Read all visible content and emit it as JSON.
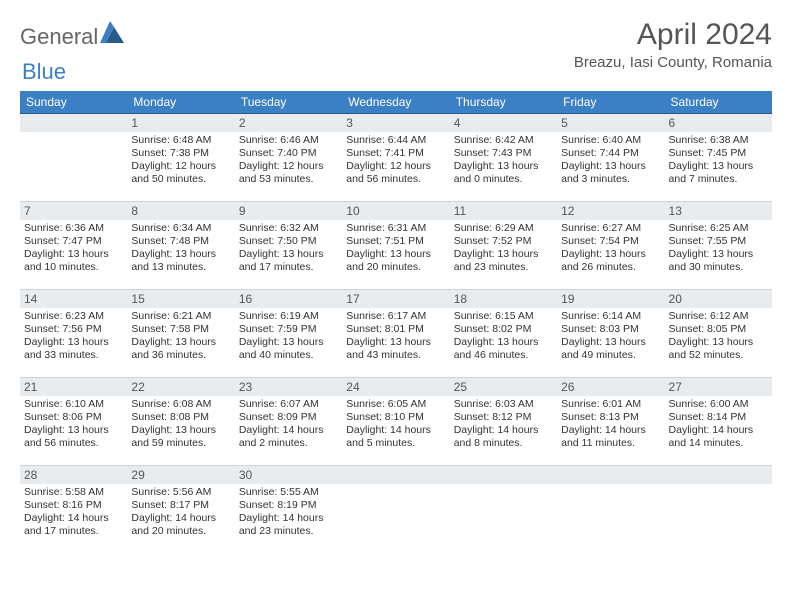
{
  "brand": {
    "general": "General",
    "blue": "Blue"
  },
  "title": "April 2024",
  "location": "Breazu, Iasi County, Romania",
  "weekday_headers": [
    "Sunday",
    "Monday",
    "Tuesday",
    "Wednesday",
    "Thursday",
    "Friday",
    "Saturday"
  ],
  "colors": {
    "header_bg": "#3b7fc4",
    "header_text": "#ffffff",
    "daynum_bg": "#e8ecef",
    "border": "#c8d4de",
    "body_text": "#333333",
    "title_text": "#555555",
    "logo_gray": "#666666",
    "logo_blue": "#3b7fc4",
    "page_bg": "#ffffff"
  },
  "typography": {
    "title_fontsize": 30,
    "location_fontsize": 15,
    "header_fontsize": 12,
    "daynum_fontsize": 12,
    "cell_fontsize": 10.5,
    "logo_fontsize": 22
  },
  "start_offset": 1,
  "days": [
    {
      "n": "1",
      "sunrise": "Sunrise: 6:48 AM",
      "sunset": "Sunset: 7:38 PM",
      "day1": "Daylight: 12 hours",
      "day2": "and 50 minutes."
    },
    {
      "n": "2",
      "sunrise": "Sunrise: 6:46 AM",
      "sunset": "Sunset: 7:40 PM",
      "day1": "Daylight: 12 hours",
      "day2": "and 53 minutes."
    },
    {
      "n": "3",
      "sunrise": "Sunrise: 6:44 AM",
      "sunset": "Sunset: 7:41 PM",
      "day1": "Daylight: 12 hours",
      "day2": "and 56 minutes."
    },
    {
      "n": "4",
      "sunrise": "Sunrise: 6:42 AM",
      "sunset": "Sunset: 7:43 PM",
      "day1": "Daylight: 13 hours",
      "day2": "and 0 minutes."
    },
    {
      "n": "5",
      "sunrise": "Sunrise: 6:40 AM",
      "sunset": "Sunset: 7:44 PM",
      "day1": "Daylight: 13 hours",
      "day2": "and 3 minutes."
    },
    {
      "n": "6",
      "sunrise": "Sunrise: 6:38 AM",
      "sunset": "Sunset: 7:45 PM",
      "day1": "Daylight: 13 hours",
      "day2": "and 7 minutes."
    },
    {
      "n": "7",
      "sunrise": "Sunrise: 6:36 AM",
      "sunset": "Sunset: 7:47 PM",
      "day1": "Daylight: 13 hours",
      "day2": "and 10 minutes."
    },
    {
      "n": "8",
      "sunrise": "Sunrise: 6:34 AM",
      "sunset": "Sunset: 7:48 PM",
      "day1": "Daylight: 13 hours",
      "day2": "and 13 minutes."
    },
    {
      "n": "9",
      "sunrise": "Sunrise: 6:32 AM",
      "sunset": "Sunset: 7:50 PM",
      "day1": "Daylight: 13 hours",
      "day2": "and 17 minutes."
    },
    {
      "n": "10",
      "sunrise": "Sunrise: 6:31 AM",
      "sunset": "Sunset: 7:51 PM",
      "day1": "Daylight: 13 hours",
      "day2": "and 20 minutes."
    },
    {
      "n": "11",
      "sunrise": "Sunrise: 6:29 AM",
      "sunset": "Sunset: 7:52 PM",
      "day1": "Daylight: 13 hours",
      "day2": "and 23 minutes."
    },
    {
      "n": "12",
      "sunrise": "Sunrise: 6:27 AM",
      "sunset": "Sunset: 7:54 PM",
      "day1": "Daylight: 13 hours",
      "day2": "and 26 minutes."
    },
    {
      "n": "13",
      "sunrise": "Sunrise: 6:25 AM",
      "sunset": "Sunset: 7:55 PM",
      "day1": "Daylight: 13 hours",
      "day2": "and 30 minutes."
    },
    {
      "n": "14",
      "sunrise": "Sunrise: 6:23 AM",
      "sunset": "Sunset: 7:56 PM",
      "day1": "Daylight: 13 hours",
      "day2": "and 33 minutes."
    },
    {
      "n": "15",
      "sunrise": "Sunrise: 6:21 AM",
      "sunset": "Sunset: 7:58 PM",
      "day1": "Daylight: 13 hours",
      "day2": "and 36 minutes."
    },
    {
      "n": "16",
      "sunrise": "Sunrise: 6:19 AM",
      "sunset": "Sunset: 7:59 PM",
      "day1": "Daylight: 13 hours",
      "day2": "and 40 minutes."
    },
    {
      "n": "17",
      "sunrise": "Sunrise: 6:17 AM",
      "sunset": "Sunset: 8:01 PM",
      "day1": "Daylight: 13 hours",
      "day2": "and 43 minutes."
    },
    {
      "n": "18",
      "sunrise": "Sunrise: 6:15 AM",
      "sunset": "Sunset: 8:02 PM",
      "day1": "Daylight: 13 hours",
      "day2": "and 46 minutes."
    },
    {
      "n": "19",
      "sunrise": "Sunrise: 6:14 AM",
      "sunset": "Sunset: 8:03 PM",
      "day1": "Daylight: 13 hours",
      "day2": "and 49 minutes."
    },
    {
      "n": "20",
      "sunrise": "Sunrise: 6:12 AM",
      "sunset": "Sunset: 8:05 PM",
      "day1": "Daylight: 13 hours",
      "day2": "and 52 minutes."
    },
    {
      "n": "21",
      "sunrise": "Sunrise: 6:10 AM",
      "sunset": "Sunset: 8:06 PM",
      "day1": "Daylight: 13 hours",
      "day2": "and 56 minutes."
    },
    {
      "n": "22",
      "sunrise": "Sunrise: 6:08 AM",
      "sunset": "Sunset: 8:08 PM",
      "day1": "Daylight: 13 hours",
      "day2": "and 59 minutes."
    },
    {
      "n": "23",
      "sunrise": "Sunrise: 6:07 AM",
      "sunset": "Sunset: 8:09 PM",
      "day1": "Daylight: 14 hours",
      "day2": "and 2 minutes."
    },
    {
      "n": "24",
      "sunrise": "Sunrise: 6:05 AM",
      "sunset": "Sunset: 8:10 PM",
      "day1": "Daylight: 14 hours",
      "day2": "and 5 minutes."
    },
    {
      "n": "25",
      "sunrise": "Sunrise: 6:03 AM",
      "sunset": "Sunset: 8:12 PM",
      "day1": "Daylight: 14 hours",
      "day2": "and 8 minutes."
    },
    {
      "n": "26",
      "sunrise": "Sunrise: 6:01 AM",
      "sunset": "Sunset: 8:13 PM",
      "day1": "Daylight: 14 hours",
      "day2": "and 11 minutes."
    },
    {
      "n": "27",
      "sunrise": "Sunrise: 6:00 AM",
      "sunset": "Sunset: 8:14 PM",
      "day1": "Daylight: 14 hours",
      "day2": "and 14 minutes."
    },
    {
      "n": "28",
      "sunrise": "Sunrise: 5:58 AM",
      "sunset": "Sunset: 8:16 PM",
      "day1": "Daylight: 14 hours",
      "day2": "and 17 minutes."
    },
    {
      "n": "29",
      "sunrise": "Sunrise: 5:56 AM",
      "sunset": "Sunset: 8:17 PM",
      "day1": "Daylight: 14 hours",
      "day2": "and 20 minutes."
    },
    {
      "n": "30",
      "sunrise": "Sunrise: 5:55 AM",
      "sunset": "Sunset: 8:19 PM",
      "day1": "Daylight: 14 hours",
      "day2": "and 23 minutes."
    }
  ]
}
